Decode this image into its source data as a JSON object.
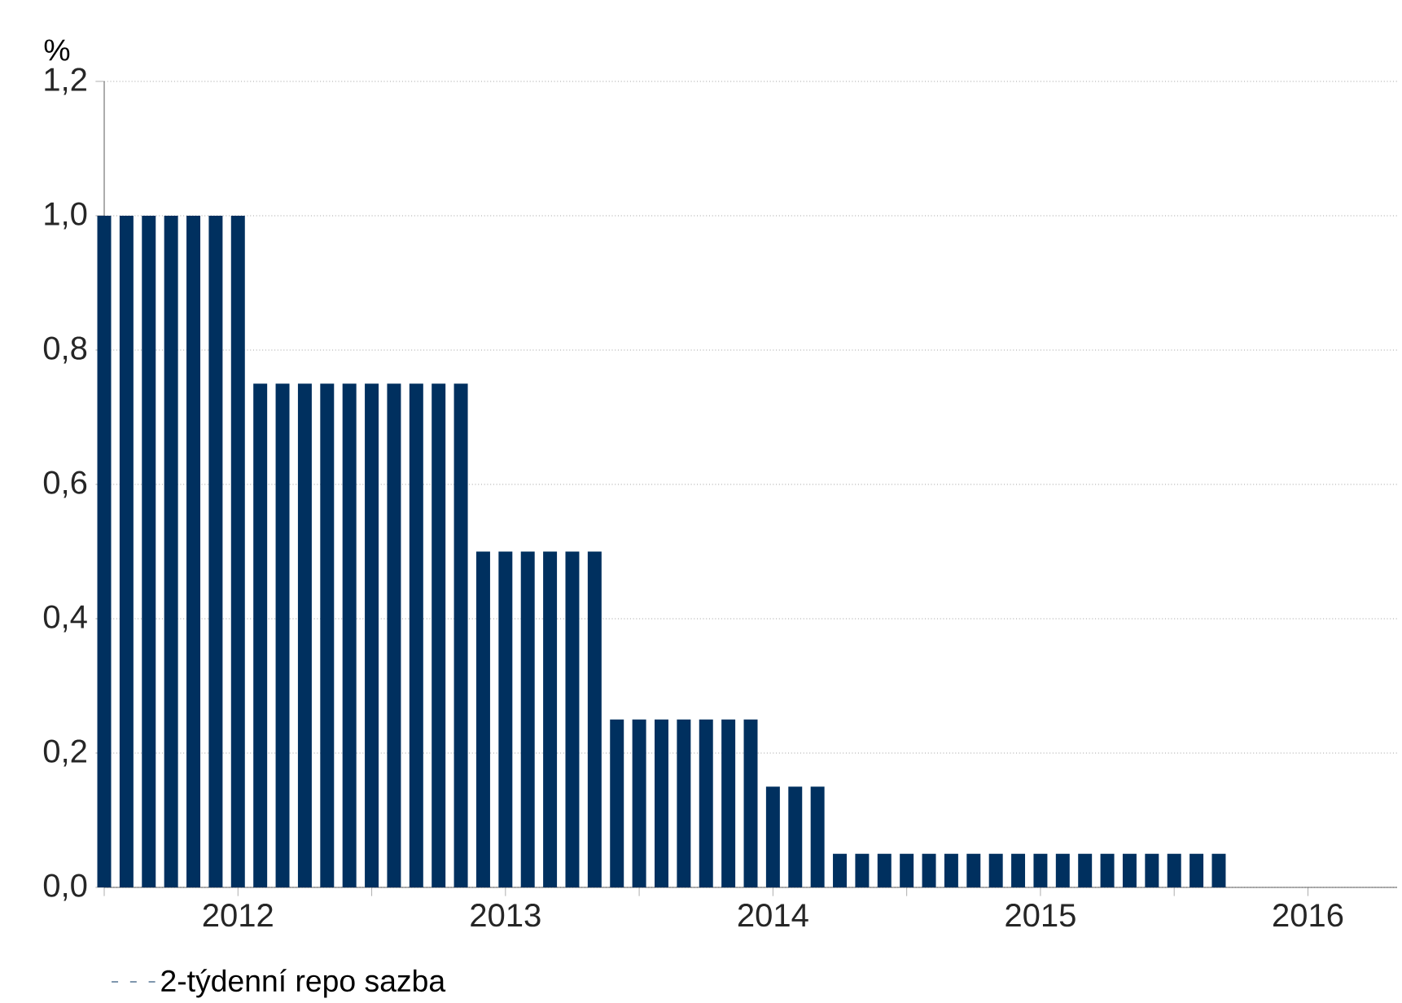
{
  "chart_data": {
    "type": "bar",
    "ylabel": "%",
    "x": [
      "2012-01",
      "2012-02",
      "2012-03",
      "2012-04",
      "2012-05",
      "2012-06",
      "2012-07",
      "2012-08",
      "2012-09",
      "2012-10",
      "2012-11",
      "2012-12",
      "2013-01",
      "2013-02",
      "2013-03",
      "2013-04",
      "2013-05",
      "2013-06",
      "2013-07",
      "2013-08",
      "2013-09",
      "2013-10",
      "2013-11",
      "2013-12",
      "2014-01",
      "2014-02",
      "2014-03",
      "2014-04",
      "2014-05",
      "2014-06",
      "2014-07",
      "2014-08",
      "2014-09",
      "2014-10",
      "2014-11",
      "2014-12",
      "2015-01",
      "2015-02",
      "2015-03",
      "2015-04",
      "2015-05",
      "2015-06",
      "2015-07",
      "2015-08",
      "2015-09",
      "2015-10",
      "2015-11",
      "2015-12",
      "2016-01",
      "2016-02",
      "2016-03"
    ],
    "series": [
      {
        "name": "2-týdenní repo sazba",
        "color": "#00305f",
        "values": [
          1.0,
          1.0,
          1.0,
          1.0,
          1.0,
          1.0,
          1.0,
          0.75,
          0.75,
          0.75,
          0.75,
          0.75,
          0.75,
          0.75,
          0.75,
          0.75,
          0.75,
          0.5,
          0.5,
          0.5,
          0.5,
          0.5,
          0.5,
          0.25,
          0.25,
          0.25,
          0.25,
          0.25,
          0.25,
          0.25,
          0.15,
          0.15,
          0.15,
          0.05,
          0.05,
          0.05,
          0.05,
          0.05,
          0.05,
          0.05,
          0.05,
          0.05,
          0.05,
          0.05,
          0.05,
          0.05,
          0.05,
          0.05,
          0.05,
          0.05,
          0.05
        ]
      }
    ],
    "xlim": [
      "2012-01",
      "2016-11"
    ],
    "xticks": [
      {
        "value": "2012-01",
        "label": null
      },
      {
        "value": "2012-07",
        "label": "2012"
      },
      {
        "value": "2013-01",
        "label": null
      },
      {
        "value": "2013-07",
        "label": "2013"
      },
      {
        "value": "2014-01",
        "label": null
      },
      {
        "value": "2014-07",
        "label": "2014"
      },
      {
        "value": "2015-01",
        "label": null
      },
      {
        "value": "2015-07",
        "label": "2015"
      },
      {
        "value": "2016-01",
        "label": null
      },
      {
        "value": "2016-07",
        "label": "2016"
      }
    ],
    "ylim": [
      0,
      1.2
    ],
    "yticks": [
      {
        "value": 0,
        "label": "0,0"
      },
      {
        "value": 0.2,
        "label": "0,2"
      },
      {
        "value": 0.4,
        "label": "0,4"
      },
      {
        "value": 0.6,
        "label": "0,6"
      },
      {
        "value": 0.8,
        "label": "0,8"
      },
      {
        "value": 1.0,
        "label": "1,0"
      },
      {
        "value": 1.2,
        "label": "1,2"
      }
    ],
    "grid": "y",
    "legend": "bottom"
  }
}
